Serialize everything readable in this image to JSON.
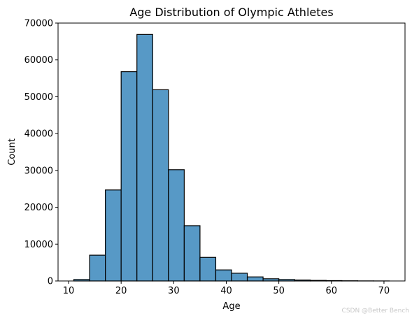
{
  "chart_data": {
    "type": "bar",
    "title": "Age Distribution of Olympic Athletes",
    "xlabel": "Age",
    "ylabel": "Count",
    "xlim": [
      8,
      74
    ],
    "ylim": [
      0,
      70000
    ],
    "xticks": [
      "10",
      "20",
      "30",
      "40",
      "50",
      "60",
      "70"
    ],
    "xtick_values": [
      10,
      20,
      30,
      40,
      50,
      60,
      70
    ],
    "yticks": [
      "0",
      "10000",
      "20000",
      "30000",
      "40000",
      "50000",
      "60000",
      "70000"
    ],
    "ytick_values": [
      0,
      10000,
      20000,
      30000,
      40000,
      50000,
      60000,
      70000
    ],
    "bin_edges": [
      11,
      14,
      17,
      20,
      23,
      26,
      29,
      32,
      35,
      38,
      41,
      44,
      47,
      50,
      53,
      56,
      59,
      62,
      65,
      68,
      71
    ],
    "values": [
      400,
      7000,
      24700,
      56800,
      66900,
      51900,
      30200,
      15000,
      6400,
      3000,
      2100,
      1100,
      600,
      400,
      250,
      150,
      100,
      50,
      20,
      10
    ],
    "color": "#5799c6",
    "edgecolor": "#000000",
    "grid": false,
    "legend": false
  },
  "watermark": "CSDN @Better Bench"
}
